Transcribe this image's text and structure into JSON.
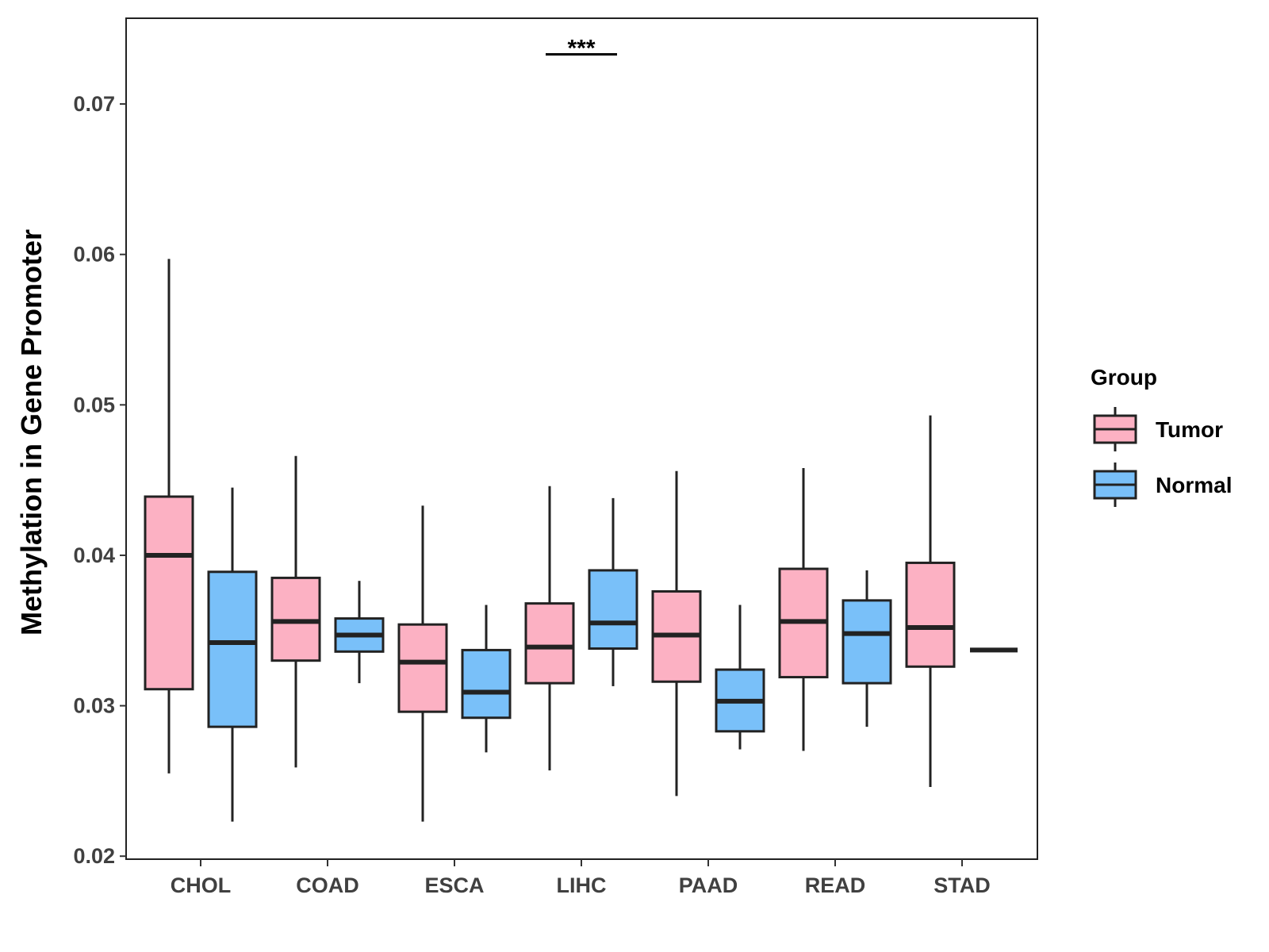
{
  "chart_data": {
    "type": "boxplot",
    "title": "",
    "xlabel": "",
    "ylabel": "Methylation in Gene Promoter",
    "ylim": [
      0.0198,
      0.0757
    ],
    "yticks": [
      "0.02",
      "0.03",
      "0.04",
      "0.05",
      "0.06",
      "0.07"
    ],
    "grid": false,
    "categories": [
      "CHOL",
      "COAD",
      "ESCA",
      "LIHC",
      "PAAD",
      "READ",
      "STAD"
    ],
    "legend": {
      "title": "Group",
      "position": "right",
      "entries": [
        {
          "name": "Tumor",
          "color": "#FCB1C3"
        },
        {
          "name": "Normal",
          "color": "#79C0F9"
        }
      ]
    },
    "series": [
      {
        "name": "Tumor",
        "color": "#FCB1C3",
        "boxes": [
          {
            "category": "CHOL",
            "min": 0.0255,
            "q1": 0.0311,
            "median": 0.04,
            "q3": 0.0439,
            "max": 0.0597
          },
          {
            "category": "COAD",
            "min": 0.0259,
            "q1": 0.033,
            "median": 0.0356,
            "q3": 0.0385,
            "max": 0.0466
          },
          {
            "category": "ESCA",
            "min": 0.0223,
            "q1": 0.0296,
            "median": 0.0329,
            "q3": 0.0354,
            "max": 0.0433
          },
          {
            "category": "LIHC",
            "min": 0.0257,
            "q1": 0.0315,
            "median": 0.0339,
            "q3": 0.0368,
            "max": 0.0446
          },
          {
            "category": "PAAD",
            "min": 0.024,
            "q1": 0.0316,
            "median": 0.0347,
            "q3": 0.0376,
            "max": 0.0456
          },
          {
            "category": "READ",
            "min": 0.027,
            "q1": 0.0319,
            "median": 0.0356,
            "q3": 0.0391,
            "max": 0.0458
          },
          {
            "category": "STAD",
            "min": 0.0246,
            "q1": 0.0326,
            "median": 0.0352,
            "q3": 0.0395,
            "max": 0.0493
          }
        ]
      },
      {
        "name": "Normal",
        "color": "#79C0F9",
        "boxes": [
          {
            "category": "CHOL",
            "min": 0.0223,
            "q1": 0.0286,
            "median": 0.0342,
            "q3": 0.0389,
            "max": 0.0445
          },
          {
            "category": "COAD",
            "min": 0.0315,
            "q1": 0.0336,
            "median": 0.0347,
            "q3": 0.0358,
            "max": 0.0383
          },
          {
            "category": "ESCA",
            "min": 0.0269,
            "q1": 0.0292,
            "median": 0.0309,
            "q3": 0.0337,
            "max": 0.0367
          },
          {
            "category": "LIHC",
            "min": 0.0313,
            "q1": 0.0338,
            "median": 0.0355,
            "q3": 0.039,
            "max": 0.0438
          },
          {
            "category": "PAAD",
            "min": 0.0271,
            "q1": 0.0283,
            "median": 0.0303,
            "q3": 0.0324,
            "max": 0.0367
          },
          {
            "category": "READ",
            "min": 0.0286,
            "q1": 0.0315,
            "median": 0.0348,
            "q3": 0.037,
            "max": 0.039
          },
          {
            "category": "STAD",
            "min": 0.0337,
            "q1": 0.0337,
            "median": 0.0337,
            "q3": 0.0337,
            "max": 0.0337
          }
        ]
      }
    ],
    "annotations": [
      {
        "category": "LIHC",
        "label": "***",
        "y": 0.0733
      }
    ]
  }
}
